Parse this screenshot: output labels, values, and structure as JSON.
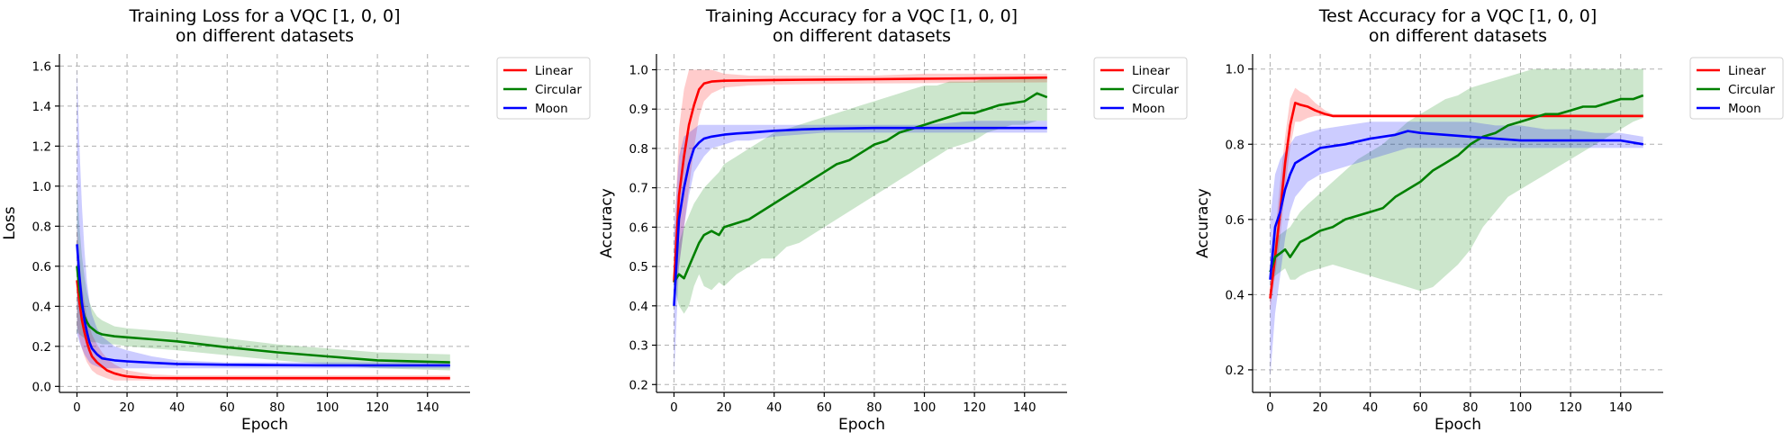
{
  "colors": {
    "Linear": "#ff0000",
    "Circular": "#008000",
    "Moon": "#0000ff"
  },
  "chart_data": [
    {
      "type": "line",
      "title": [
        "Training Loss for a VQC [1, 0, 0]",
        "on different datasets"
      ],
      "xlabel": "Epoch",
      "ylabel": "Loss",
      "xlim": [
        -7,
        157
      ],
      "ylim": [
        -0.03,
        1.66
      ],
      "xticks": [
        0,
        20,
        40,
        60,
        80,
        100,
        120,
        140
      ],
      "yticks": [
        0.0,
        0.2,
        0.4,
        0.6,
        0.8,
        1.0,
        1.2,
        1.4,
        1.6
      ],
      "ytick_decimals": 1,
      "grid": true,
      "legend": "outside-top-right",
      "series": [
        {
          "name": "Linear",
          "x": [
            0,
            1,
            2,
            3,
            4,
            5,
            6,
            8,
            10,
            12,
            15,
            18,
            20,
            25,
            30,
            40,
            60,
            80,
            100,
            120,
            149
          ],
          "y": [
            0.53,
            0.42,
            0.33,
            0.27,
            0.22,
            0.18,
            0.15,
            0.12,
            0.1,
            0.08,
            0.065,
            0.055,
            0.05,
            0.045,
            0.042,
            0.041,
            0.041,
            0.041,
            0.041,
            0.041,
            0.041
          ],
          "lower": [
            0.3,
            0.24,
            0.19,
            0.15,
            0.12,
            0.1,
            0.08,
            0.06,
            0.05,
            0.04,
            0.03,
            0.03,
            0.03,
            0.03,
            0.03,
            0.03,
            0.03,
            0.03,
            0.03,
            0.03,
            0.03
          ],
          "upper": [
            0.8,
            0.62,
            0.5,
            0.42,
            0.35,
            0.3,
            0.26,
            0.21,
            0.17,
            0.14,
            0.11,
            0.09,
            0.08,
            0.07,
            0.06,
            0.055,
            0.055,
            0.055,
            0.055,
            0.055,
            0.055
          ]
        },
        {
          "name": "Circular",
          "x": [
            0,
            1,
            2,
            3,
            4,
            5,
            6,
            8,
            10,
            15,
            20,
            30,
            40,
            60,
            80,
            100,
            120,
            149
          ],
          "y": [
            0.6,
            0.48,
            0.4,
            0.35,
            0.32,
            0.3,
            0.29,
            0.27,
            0.26,
            0.25,
            0.245,
            0.235,
            0.225,
            0.195,
            0.17,
            0.15,
            0.13,
            0.12
          ],
          "lower": [
            0.27,
            0.26,
            0.25,
            0.24,
            0.23,
            0.23,
            0.22,
            0.22,
            0.21,
            0.21,
            0.2,
            0.19,
            0.18,
            0.155,
            0.13,
            0.11,
            0.09,
            0.08
          ],
          "upper": [
            1.0,
            0.8,
            0.65,
            0.55,
            0.47,
            0.42,
            0.39,
            0.35,
            0.33,
            0.3,
            0.29,
            0.28,
            0.27,
            0.24,
            0.21,
            0.19,
            0.17,
            0.16
          ]
        },
        {
          "name": "Moon",
          "x": [
            0,
            1,
            2,
            3,
            4,
            5,
            6,
            8,
            10,
            15,
            20,
            30,
            40,
            60,
            80,
            100,
            120,
            149
          ],
          "y": [
            0.71,
            0.55,
            0.42,
            0.33,
            0.27,
            0.22,
            0.19,
            0.16,
            0.14,
            0.13,
            0.125,
            0.118,
            0.112,
            0.108,
            0.106,
            0.105,
            0.105,
            0.105
          ],
          "lower": [
            0.26,
            0.22,
            0.19,
            0.16,
            0.14,
            0.12,
            0.11,
            0.1,
            0.09,
            0.09,
            0.09,
            0.09,
            0.09,
            0.09,
            0.09,
            0.09,
            0.09,
            0.09
          ],
          "upper": [
            1.59,
            1.2,
            0.9,
            0.68,
            0.52,
            0.42,
            0.36,
            0.29,
            0.25,
            0.2,
            0.18,
            0.15,
            0.13,
            0.12,
            0.12,
            0.12,
            0.12,
            0.12
          ]
        }
      ]
    },
    {
      "type": "line",
      "title": [
        "Training Accuracy for a VQC [1, 0, 0]",
        "on different datasets"
      ],
      "xlabel": "Epoch",
      "ylabel": "Accuracy",
      "xlim": [
        -7,
        157
      ],
      "ylim": [
        0.18,
        1.04
      ],
      "xticks": [
        0,
        20,
        40,
        60,
        80,
        100,
        120,
        140
      ],
      "yticks": [
        0.2,
        0.3,
        0.4,
        0.5,
        0.6,
        0.7,
        0.8,
        0.9,
        1.0
      ],
      "ytick_decimals": 1,
      "grid": true,
      "legend": "outside-top-right",
      "series": [
        {
          "name": "Linear",
          "x": [
            0,
            2,
            4,
            6,
            8,
            10,
            12,
            15,
            20,
            30,
            40,
            60,
            80,
            100,
            120,
            149
          ],
          "y": [
            0.46,
            0.68,
            0.78,
            0.86,
            0.91,
            0.95,
            0.965,
            0.97,
            0.972,
            0.973,
            0.974,
            0.975,
            0.976,
            0.977,
            0.978,
            0.98
          ],
          "lower": [
            0.4,
            0.5,
            0.6,
            0.7,
            0.8,
            0.88,
            0.92,
            0.94,
            0.955,
            0.96,
            0.962,
            0.964,
            0.965,
            0.966,
            0.967,
            0.968
          ],
          "upper": [
            0.55,
            0.85,
            0.95,
            1.0,
            1.0,
            1.0,
            1.0,
            1.0,
            0.99,
            0.985,
            0.985,
            0.985,
            0.985,
            0.99,
            0.99,
            0.99
          ]
        },
        {
          "name": "Circular",
          "x": [
            0,
            2,
            4,
            6,
            8,
            10,
            12,
            15,
            18,
            20,
            25,
            30,
            35,
            40,
            45,
            50,
            55,
            60,
            65,
            70,
            75,
            80,
            85,
            90,
            95,
            100,
            105,
            110,
            115,
            120,
            125,
            130,
            135,
            140,
            145,
            149
          ],
          "y": [
            0.46,
            0.48,
            0.47,
            0.5,
            0.53,
            0.56,
            0.58,
            0.59,
            0.58,
            0.6,
            0.61,
            0.62,
            0.64,
            0.66,
            0.68,
            0.7,
            0.72,
            0.74,
            0.76,
            0.77,
            0.79,
            0.81,
            0.82,
            0.84,
            0.85,
            0.86,
            0.87,
            0.88,
            0.89,
            0.89,
            0.9,
            0.91,
            0.915,
            0.92,
            0.94,
            0.93
          ],
          "lower": [
            0.45,
            0.4,
            0.38,
            0.4,
            0.45,
            0.48,
            0.45,
            0.44,
            0.46,
            0.45,
            0.48,
            0.5,
            0.52,
            0.52,
            0.55,
            0.56,
            0.58,
            0.6,
            0.62,
            0.64,
            0.66,
            0.68,
            0.7,
            0.72,
            0.74,
            0.76,
            0.78,
            0.8,
            0.81,
            0.82,
            0.84,
            0.85,
            0.86,
            0.86,
            0.87,
            0.87
          ],
          "upper": [
            0.47,
            0.56,
            0.6,
            0.63,
            0.66,
            0.68,
            0.7,
            0.72,
            0.74,
            0.76,
            0.78,
            0.8,
            0.82,
            0.84,
            0.85,
            0.86,
            0.87,
            0.88,
            0.89,
            0.9,
            0.91,
            0.92,
            0.93,
            0.94,
            0.95,
            0.96,
            0.96,
            0.97,
            0.97,
            0.97,
            0.98,
            0.98,
            0.98,
            0.98,
            0.98,
            0.98
          ]
        },
        {
          "name": "Moon",
          "x": [
            0,
            2,
            4,
            6,
            8,
            10,
            12,
            15,
            20,
            25,
            30,
            40,
            50,
            60,
            80,
            100,
            120,
            149
          ],
          "y": [
            0.4,
            0.62,
            0.7,
            0.76,
            0.8,
            0.815,
            0.825,
            0.83,
            0.835,
            0.838,
            0.84,
            0.845,
            0.848,
            0.85,
            0.852,
            0.852,
            0.852,
            0.852
          ],
          "lower": [
            0.22,
            0.5,
            0.6,
            0.68,
            0.74,
            0.76,
            0.78,
            0.8,
            0.81,
            0.82,
            0.82,
            0.83,
            0.835,
            0.84,
            0.84,
            0.84,
            0.84,
            0.84
          ],
          "upper": [
            0.6,
            0.78,
            0.83,
            0.84,
            0.85,
            0.86,
            0.86,
            0.86,
            0.86,
            0.86,
            0.86,
            0.86,
            0.86,
            0.86,
            0.86,
            0.86,
            0.87,
            0.87
          ]
        }
      ]
    },
    {
      "type": "line",
      "title": [
        "Test Accuracy for a VQC [1, 0, 0]",
        "on different datasets"
      ],
      "xlabel": "Epoch",
      "ylabel": "Accuracy",
      "xlim": [
        -7,
        157
      ],
      "ylim": [
        0.14,
        1.04
      ],
      "xticks": [
        0,
        20,
        40,
        60,
        80,
        100,
        120,
        140
      ],
      "yticks": [
        0.2,
        0.4,
        0.6,
        0.8,
        1.0
      ],
      "ytick_decimals": 1,
      "grid": true,
      "legend": "outside-top-right",
      "series": [
        {
          "name": "Linear",
          "x": [
            0,
            2,
            4,
            6,
            8,
            10,
            12,
            15,
            18,
            20,
            22,
            25,
            30,
            40,
            60,
            80,
            100,
            120,
            149
          ],
          "y": [
            0.39,
            0.5,
            0.62,
            0.75,
            0.85,
            0.91,
            0.905,
            0.9,
            0.89,
            0.885,
            0.88,
            0.875,
            0.875,
            0.875,
            0.875,
            0.875,
            0.875,
            0.875,
            0.875
          ],
          "lower": [
            0.36,
            0.45,
            0.55,
            0.68,
            0.79,
            0.86,
            0.86,
            0.87,
            0.875,
            0.875,
            0.875,
            0.875,
            0.875,
            0.875,
            0.875,
            0.875,
            0.875,
            0.875,
            0.875
          ],
          "upper": [
            0.42,
            0.56,
            0.7,
            0.82,
            0.92,
            0.95,
            0.94,
            0.93,
            0.91,
            0.9,
            0.89,
            0.88,
            0.88,
            0.88,
            0.88,
            0.88,
            0.88,
            0.88,
            0.88
          ]
        },
        {
          "name": "Circular",
          "x": [
            0,
            2,
            4,
            6,
            8,
            10,
            12,
            15,
            20,
            25,
            30,
            35,
            40,
            45,
            50,
            55,
            60,
            65,
            70,
            75,
            80,
            85,
            90,
            95,
            100,
            105,
            110,
            115,
            120,
            125,
            130,
            135,
            140,
            145,
            149
          ],
          "y": [
            0.46,
            0.5,
            0.51,
            0.52,
            0.5,
            0.52,
            0.54,
            0.55,
            0.57,
            0.58,
            0.6,
            0.61,
            0.62,
            0.63,
            0.66,
            0.68,
            0.7,
            0.73,
            0.75,
            0.77,
            0.8,
            0.82,
            0.83,
            0.85,
            0.86,
            0.87,
            0.88,
            0.88,
            0.89,
            0.9,
            0.9,
            0.91,
            0.92,
            0.92,
            0.93
          ],
          "lower": [
            0.44,
            0.45,
            0.46,
            0.47,
            0.44,
            0.44,
            0.45,
            0.46,
            0.47,
            0.48,
            0.47,
            0.46,
            0.45,
            0.44,
            0.43,
            0.42,
            0.41,
            0.42,
            0.45,
            0.48,
            0.52,
            0.58,
            0.62,
            0.66,
            0.68,
            0.7,
            0.72,
            0.74,
            0.76,
            0.78,
            0.8,
            0.82,
            0.84,
            0.86,
            0.87
          ],
          "upper": [
            0.48,
            0.55,
            0.56,
            0.57,
            0.58,
            0.6,
            0.62,
            0.64,
            0.67,
            0.7,
            0.73,
            0.76,
            0.78,
            0.8,
            0.83,
            0.86,
            0.88,
            0.9,
            0.92,
            0.93,
            0.95,
            0.96,
            0.97,
            0.98,
            0.99,
            1.0,
            1.0,
            1.0,
            1.0,
            1.0,
            1.0,
            1.0,
            1.0,
            1.0,
            1.0
          ]
        },
        {
          "name": "Moon",
          "x": [
            0,
            2,
            4,
            6,
            8,
            10,
            15,
            20,
            30,
            40,
            50,
            55,
            60,
            70,
            80,
            90,
            100,
            110,
            120,
            130,
            140,
            149
          ],
          "y": [
            0.44,
            0.58,
            0.62,
            0.68,
            0.72,
            0.75,
            0.77,
            0.79,
            0.8,
            0.815,
            0.825,
            0.835,
            0.83,
            0.825,
            0.82,
            0.815,
            0.81,
            0.81,
            0.81,
            0.81,
            0.81,
            0.8
          ],
          "lower": [
            0.18,
            0.35,
            0.45,
            0.55,
            0.62,
            0.66,
            0.7,
            0.72,
            0.74,
            0.76,
            0.78,
            0.79,
            0.79,
            0.79,
            0.79,
            0.79,
            0.79,
            0.79,
            0.79,
            0.79,
            0.79,
            0.79
          ],
          "upper": [
            0.6,
            0.72,
            0.76,
            0.78,
            0.8,
            0.82,
            0.83,
            0.84,
            0.85,
            0.86,
            0.86,
            0.86,
            0.86,
            0.86,
            0.86,
            0.85,
            0.85,
            0.84,
            0.84,
            0.83,
            0.83,
            0.82
          ]
        }
      ]
    }
  ]
}
